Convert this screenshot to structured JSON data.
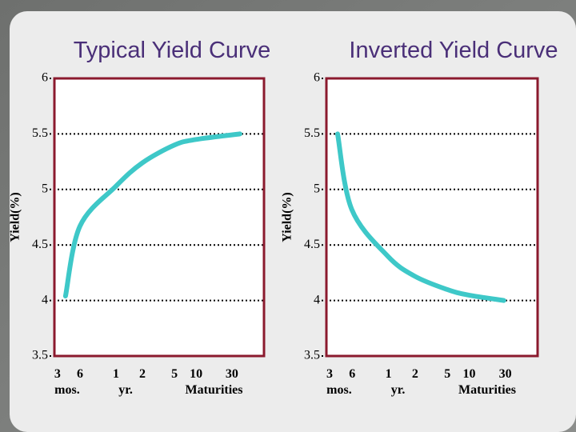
{
  "chart_data": [
    {
      "type": "line",
      "title": "Typical Yield Curve",
      "y_label": "Yield(%)",
      "x_label": "Maturities",
      "categories": [
        "3",
        "6",
        "1",
        "2",
        "5",
        "10",
        "30"
      ],
      "category_units": [
        "mos.",
        null,
        "yr.",
        null,
        null,
        null,
        null
      ],
      "series": [
        {
          "name": null,
          "color": "#3ec8c8",
          "values": [
            4.04,
            4.67,
            5.03,
            5.24,
            5.4,
            5.45,
            5.5
          ]
        }
      ],
      "ylim": [
        3.5,
        6
      ],
      "yticks": [
        3.5,
        4,
        4.5,
        5,
        5.5,
        6
      ],
      "grid": true
    },
    {
      "type": "line",
      "title": "Inverted Yield Curve",
      "y_label": "Yield(%)",
      "x_label": "Maturities",
      "categories": [
        "3",
        "6",
        "1",
        "2",
        "5",
        "10",
        "30"
      ],
      "category_units": [
        "mos.",
        null,
        "yr.",
        null,
        null,
        null,
        null
      ],
      "series": [
        {
          "name": null,
          "color": "#3ec8c8",
          "values": [
            5.5,
            4.82,
            4.4,
            4.22,
            4.1,
            4.05,
            4.0
          ]
        }
      ],
      "ylim": [
        3.5,
        6
      ],
      "yticks": [
        3.5,
        4,
        4.5,
        5,
        5.5,
        6
      ],
      "grid": true
    }
  ]
}
